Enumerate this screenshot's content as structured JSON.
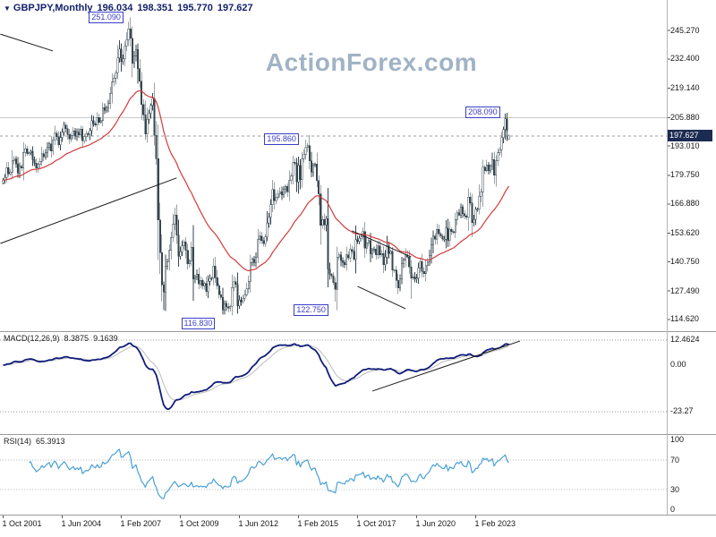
{
  "title": {
    "expand_icon": "▼",
    "symbol": "GBPJPY,Monthly",
    "open": "196.034",
    "high": "198.351",
    "low": "195.770",
    "close": "197.627"
  },
  "watermark": "ActionForex.com",
  "colors": {
    "candle": "#37474f",
    "candle_up_fill": "#ffffff",
    "ma_line": "#d23b3b",
    "macd_line": "#101c7a",
    "signal_line": "#bdbdbd",
    "rsi_line": "#4aa0d5",
    "annotation_blue": "#3a3ec9",
    "badge_bg": "#1c2b52",
    "watermark_color": "#a0b3c6",
    "trendline": "#1c1c1c"
  },
  "price_axis": {
    "ticks": [
      "245.270",
      "232.400",
      "219.140",
      "205.880",
      "193.010",
      "179.750",
      "166.880",
      "153.620",
      "140.750",
      "127.490",
      "114.620"
    ],
    "current_badge": "197.627"
  },
  "time_axis": [
    {
      "text": "1 Oct 2001",
      "month": 0
    },
    {
      "text": "1 Jun 2004",
      "month": 32
    },
    {
      "text": "1 Feb 2007",
      "month": 64
    },
    {
      "text": "1 Oct 2009",
      "month": 96
    },
    {
      "text": "1 Jun 2012",
      "month": 128
    },
    {
      "text": "1 Feb 2015",
      "month": 160
    },
    {
      "text": "1 Oct 2017",
      "month": 192
    },
    {
      "text": "1 Jun 2020",
      "month": 224
    },
    {
      "text": "1 Feb 2023",
      "month": 256
    }
  ],
  "annotations": [
    {
      "text": "251.090",
      "month": 69,
      "price": 251.09,
      "side": "high"
    },
    {
      "text": "195.860",
      "month": 164,
      "price": 195.86,
      "side": "high"
    },
    {
      "text": "208.090",
      "month": 273,
      "price": 208.09,
      "side": "high"
    },
    {
      "text": "116.830",
      "month": 119,
      "price": 116.83,
      "side": "low"
    },
    {
      "text": "122.750",
      "month": 180,
      "price": 122.75,
      "side": "low"
    }
  ],
  "macd_panel": {
    "label": "MACD(12,26,9)",
    "main_value": "8.3875",
    "signal_value": "9.1639",
    "axis_max": "12.4624",
    "axis_zero": "0.00",
    "axis_min": "-23.27"
  },
  "rsi_panel": {
    "label": "RSI(14)",
    "value": "65.3913",
    "axis": [
      "100",
      "70",
      "30",
      "0"
    ]
  },
  "chart_data": {
    "type": "candlestick",
    "symbol": "GBPJPY",
    "timeframe": "Monthly",
    "start_month": "2001-10",
    "ylim": [
      114.62,
      245.27
    ],
    "price_ticks": [
      245.27,
      232.4,
      219.14,
      205.88,
      193.01,
      179.75,
      166.88,
      153.62,
      140.75,
      127.49,
      114.62
    ],
    "closes": [
      177.6,
      178.9,
      183.2,
      180.4,
      181.2,
      186.6,
      187.1,
      184.9,
      180.8,
      183.9,
      183.1,
      190.2,
      191.8,
      189.6,
      189.9,
      190.6,
      186.9,
      185.4,
      183.1,
      184.6,
      186.2,
      189.6,
      188.1,
      190.1,
      192.6,
      194.1,
      190.8,
      195.8,
      198.9,
      197.2,
      193.5,
      196.8,
      199.2,
      202.4,
      200.9,
      198.3,
      196.2,
      197.9,
      199.8,
      197.4,
      199.2,
      198.1,
      200.6,
      195.4,
      197.2,
      198.6,
      198.2,
      200.1,
      204.6,
      203.1,
      202.4,
      205.9,
      203.8,
      204.6,
      210.3,
      209.1,
      210.4,
      212.3,
      216.8,
      221.9,
      223.7,
      226.2,
      232.9,
      236.8,
      231.2,
      232.4,
      238.3,
      241.2,
      245.9,
      241.7,
      230.4,
      233.9,
      236.7,
      227.9,
      222.3,
      211.8,
      207.2,
      198.4,
      205.1,
      207.8,
      211.3,
      214.6,
      197.9,
      187.3,
      159.6,
      144.8,
      130.2,
      127.1,
      138.6,
      140.8,
      145.9,
      151.7,
      157.6,
      161.9,
      152.8,
      143.2,
      145.3,
      147.9,
      149.7,
      145.8,
      139.7,
      141.2,
      147.3,
      132.9,
      133.8,
      135.1,
      130.7,
      132.3,
      129.9,
      130.8,
      127.2,
      131.9,
      133.1,
      133.4,
      138.8,
      133.6,
      129.8,
      125.9,
      124.7,
      118.9,
      121.7,
      120.4,
      119.7,
      120.6,
      129.1,
      131.8,
      130.4,
      120.8,
      123.4,
      122.6,
      124.3,
      125.9,
      128.4,
      131.9,
      140.4,
      141.8,
      140.4,
      142.9,
      150.8,
      152.4,
      150.3,
      148.9,
      151.9,
      158.3,
      160.9,
      166.4,
      173.4,
      168.3,
      169.8,
      171.4,
      172.4,
      170.9,
      173.3,
      174.8,
      172.3,
      177.4,
      179.4,
      185.8,
      185.3,
      176.8,
      184.3,
      177.8,
      187.3,
      189.3,
      192.3,
      193.1,
      186.3,
      181.3,
      184.3,
      184.8,
      177.4,
      171.3,
      157.1,
      159.8,
      157.3,
      160.2,
      137.4,
      135.1,
      134.3,
      131.4,
      128.3,
      142.9,
      143.8,
      141.3,
      140.4,
      139.3,
      143.9,
      142.4,
      146.3,
      145.4,
      141.9,
      150.8,
      149.9,
      151.4,
      151.9,
      154.3,
      146.9,
      149.4,
      150.4,
      144.3,
      145.9,
      146.4,
      143.9,
      147.9,
      143.9,
      144.4,
      139.4,
      142.9,
      147.9,
      144.4,
      145.4,
      136.9,
      136.9,
      132.4,
      128.9,
      132.9,
      139.9,
      141.4,
      143.9,
      142.9,
      138.4,
      133.4,
      133.9,
      132.9,
      133.4,
      137.9,
      140.9,
      136.4,
      135.4,
      138.9,
      140.9,
      143.4,
      148.4,
      152.4,
      150.9,
      155.4,
      153.4,
      152.4,
      150.9,
      150.9,
      155.9,
      150.4,
      155.4,
      154.4,
      153.9,
      159.9,
      162.9,
      161.9,
      165.4,
      162.4,
      161.4,
      160.9,
      169.9,
      167.4,
      158.4,
      159.9,
      164.4,
      164.4,
      170.4,
      172.4,
      183.4,
      181.9,
      184.4,
      181.9,
      183.9,
      186.9,
      179.9,
      186.4,
      189.9,
      191.4,
      196.9,
      200.4,
      205.4,
      199.8,
      197.627
    ],
    "current_bar": {
      "open": 196.034,
      "high": 198.351,
      "low": 195.77,
      "close": 197.627
    },
    "extremes": [
      {
        "index": 69,
        "high": 251.09
      },
      {
        "index": 87,
        "low": 118.85
      },
      {
        "index": 119,
        "low": 116.83
      },
      {
        "index": 164,
        "high": 195.86
      },
      {
        "index": 180,
        "low": 122.75
      },
      {
        "index": 221,
        "low": 123.9
      },
      {
        "index": 273,
        "high": 208.09
      }
    ],
    "overlays": {
      "ma": {
        "type": "EMA",
        "period": 40
      }
    },
    "indicators": [
      {
        "name": "MACD",
        "params": [
          12,
          26,
          9
        ],
        "last_values": [
          8.3875,
          9.1639
        ],
        "range": [
          -23.27,
          12.4624
        ]
      },
      {
        "name": "RSI",
        "params": [
          14
        ],
        "last_value": 65.3913,
        "range": [
          0,
          100
        ],
        "levels": [
          30,
          70
        ]
      }
    ],
    "trendlines_price": [
      {
        "m1": -1.5,
        "p1": 243.6,
        "m2": 27,
        "p2": 236.0
      },
      {
        "m1": -1.5,
        "p1": 149.0,
        "m2": 94,
        "p2": 178.6
      },
      {
        "m1": 189,
        "p1": 154.7,
        "m2": 221,
        "p2": 142.9
      },
      {
        "m1": 192,
        "p1": 129.6,
        "m2": 218,
        "p2": 119.5
      }
    ],
    "trendlines_macd": [
      {
        "m1": 200,
        "v1": -12.9,
        "m2": 280,
        "v2": 12.0
      }
    ],
    "hlines": [
      {
        "price": 205.88
      }
    ]
  }
}
